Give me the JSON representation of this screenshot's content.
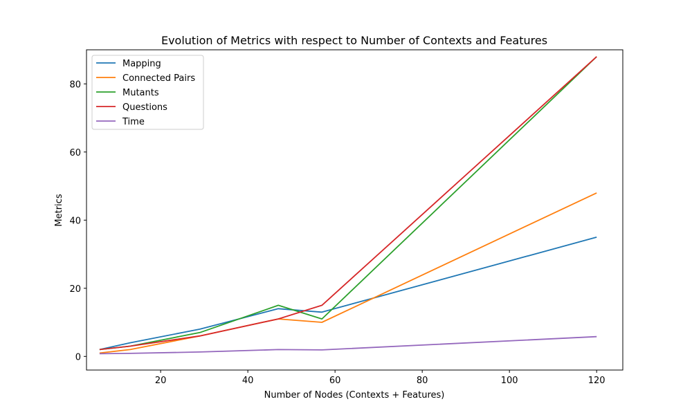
{
  "chart_data": {
    "type": "line",
    "title": "Evolution of Metrics with respect to Number of Contexts and Features",
    "xlabel": "Number of Nodes (Contexts + Features)",
    "ylabel": "Metrics",
    "xlim": [
      3,
      126
    ],
    "ylim": [
      -4,
      90
    ],
    "xticks": [
      20,
      40,
      60,
      80,
      100,
      120
    ],
    "yticks": [
      0,
      20,
      40,
      60,
      80
    ],
    "grid": false,
    "legend_position": "top-left",
    "x": [
      6,
      13,
      29,
      47,
      57,
      120
    ],
    "series": [
      {
        "name": "Mapping",
        "color": "#1f77b4",
        "values": [
          2,
          4,
          8,
          14,
          13,
          35
        ]
      },
      {
        "name": "Connected Pairs",
        "color": "#ff7f0e",
        "values": [
          1,
          2,
          6,
          11,
          10,
          48
        ]
      },
      {
        "name": "Mutants",
        "color": "#2ca02c",
        "values": [
          2,
          3,
          7,
          15,
          11,
          88
        ]
      },
      {
        "name": "Questions",
        "color": "#d62728",
        "values": [
          2,
          3,
          6,
          11,
          15,
          88
        ]
      },
      {
        "name": "Time",
        "color": "#9467bd",
        "values": [
          0.8,
          0.9,
          1.3,
          2.0,
          1.9,
          5.8
        ]
      }
    ]
  }
}
